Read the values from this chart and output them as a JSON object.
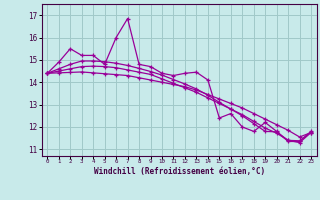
{
  "xlabel": "Windchill (Refroidissement éolien,°C)",
  "bg_color": "#c8eaea",
  "grid_color": "#a0c8c8",
  "line_color": "#990099",
  "spine_color": "#440044",
  "x_ticks": [
    0,
    1,
    2,
    3,
    4,
    5,
    6,
    7,
    8,
    9,
    10,
    11,
    12,
    13,
    14,
    15,
    16,
    17,
    18,
    19,
    20,
    21,
    22,
    23
  ],
  "y_ticks": [
    11,
    12,
    13,
    14,
    15,
    16,
    17
  ],
  "ylim": [
    10.7,
    17.5
  ],
  "xlim": [
    -0.5,
    23.5
  ],
  "series": [
    [
      14.4,
      14.9,
      15.5,
      15.2,
      15.2,
      14.8,
      16.0,
      16.85,
      14.8,
      14.7,
      14.4,
      14.3,
      14.4,
      14.45,
      14.1,
      12.4,
      12.6,
      12.0,
      11.8,
      12.2,
      11.8,
      11.35,
      11.35,
      11.8
    ],
    [
      14.4,
      14.42,
      14.44,
      14.46,
      14.42,
      14.38,
      14.34,
      14.3,
      14.2,
      14.1,
      14.0,
      13.9,
      13.8,
      13.65,
      13.45,
      13.25,
      13.05,
      12.85,
      12.6,
      12.35,
      12.1,
      11.85,
      11.55,
      11.75
    ],
    [
      14.4,
      14.5,
      14.6,
      14.7,
      14.72,
      14.7,
      14.65,
      14.55,
      14.45,
      14.35,
      14.15,
      13.95,
      13.75,
      13.55,
      13.3,
      13.05,
      12.8,
      12.55,
      12.25,
      11.95,
      11.72,
      11.4,
      11.3,
      11.75
    ],
    [
      14.4,
      14.6,
      14.8,
      14.95,
      14.95,
      14.92,
      14.85,
      14.75,
      14.62,
      14.48,
      14.32,
      14.12,
      13.92,
      13.7,
      13.42,
      13.1,
      12.8,
      12.5,
      12.15,
      11.8,
      11.78,
      11.4,
      11.38,
      11.78
    ]
  ]
}
